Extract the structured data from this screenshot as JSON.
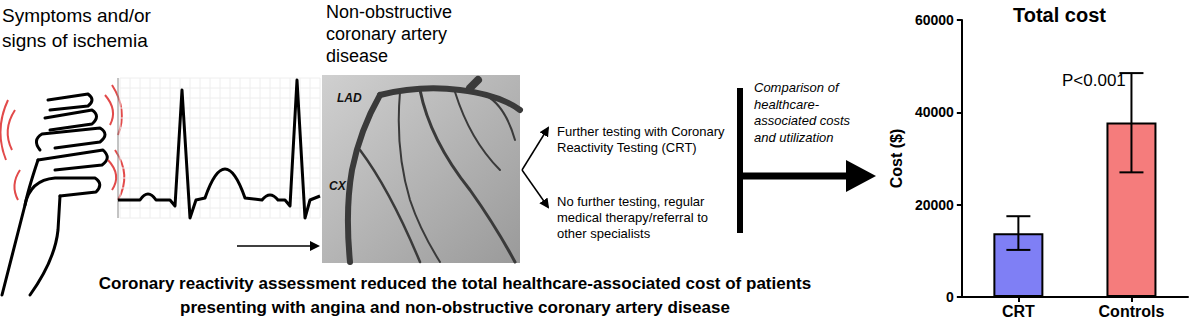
{
  "diagram": {
    "stages": [
      {
        "label": [
          "Symptoms and/or",
          "signs of ischemia"
        ]
      },
      {
        "label": [
          "Non-obstructive",
          "coronary artery",
          "disease"
        ],
        "image_labels": [
          "LAD",
          "CX"
        ]
      }
    ],
    "branches": [
      [
        "Further testing with Coronary",
        "Reactivity Testing (CRT)"
      ],
      [
        "No further testing, regular",
        "medical therapy/referral to",
        "other specialists"
      ]
    ],
    "comparison": [
      "Comparison of",
      "healthcare-",
      "associated costs",
      "and utilization"
    ],
    "conclusion": [
      "Coronary reactivity assessment reduced the total healthcare-associated cost of patients",
      "presenting with angina and non-obstructive coronary artery disease"
    ]
  },
  "chart_data": {
    "type": "bar",
    "title": "Total cost",
    "categories": [
      "CRT",
      "Controls"
    ],
    "values": [
      13800,
      37800
    ],
    "error_low": [
      10200,
      27000
    ],
    "error_high": [
      17500,
      48500
    ],
    "colors": [
      "#7f7ff5",
      "#f57c7c"
    ],
    "y_label": "Cost ($)",
    "ylim": [
      0,
      60000
    ],
    "yticks": [
      0,
      20000,
      40000,
      60000
    ],
    "annotation": "P<0.001",
    "grid": false
  }
}
